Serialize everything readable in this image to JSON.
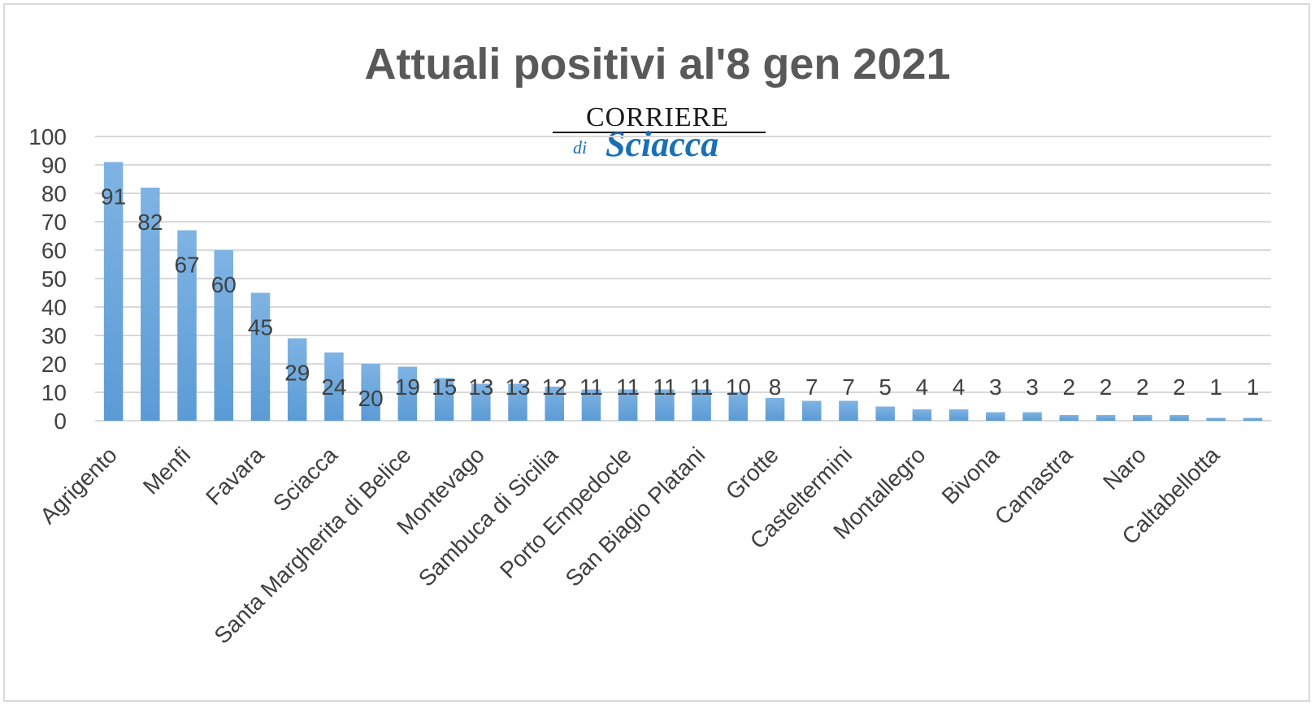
{
  "chart_data": {
    "type": "bar",
    "title": "Attuali positivi al'8 gen 2021",
    "xlabel": "",
    "ylabel": "",
    "ylim": [
      0,
      100
    ],
    "yticks": [
      0,
      10,
      20,
      30,
      40,
      50,
      60,
      70,
      80,
      90,
      100
    ],
    "grid": true,
    "legend": "none",
    "bar_color": "#5b9bd5",
    "categories": [
      "Agrigento",
      "",
      "Menfi",
      "",
      "Favara",
      "",
      "Sciacca",
      "",
      "Santa Margherita di Belice",
      "",
      "Montevago",
      "",
      "Sambuca di Sicilia",
      "",
      "Porto Empedocle",
      "",
      "San Biagio Platani",
      "",
      "Grotte",
      "",
      "Casteltermini",
      "",
      "Montallegro",
      "",
      "Bivona",
      "",
      "Camastra",
      "",
      "Naro",
      "",
      "Caltabellotta",
      ""
    ],
    "values": [
      91,
      82,
      67,
      60,
      45,
      29,
      24,
      20,
      19,
      15,
      13,
      13,
      12,
      11,
      11,
      11,
      11,
      10,
      8,
      7,
      7,
      5,
      4,
      4,
      3,
      3,
      2,
      2,
      2,
      2,
      1,
      1
    ]
  },
  "logo": {
    "top": "CORRIERE",
    "di": "di",
    "script": "Sciacca"
  }
}
